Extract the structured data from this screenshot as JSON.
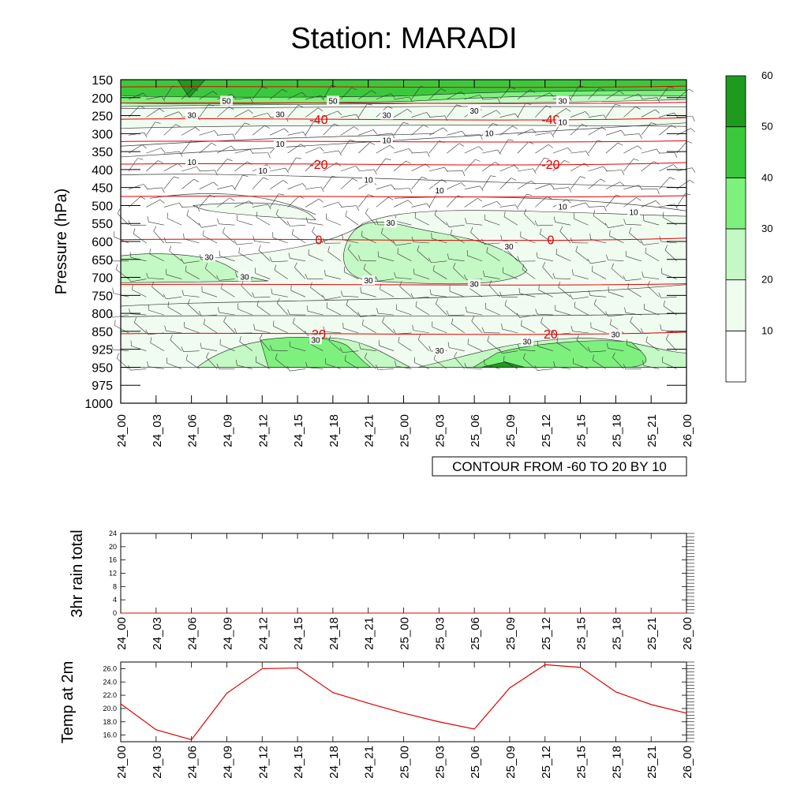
{
  "title": "Station: MARADI",
  "chart_data": [
    {
      "type": "heatmap",
      "name": "time-pressure cross section",
      "ylabel": "Pressure (hPa)",
      "y_reversed": true,
      "y_ticks": [
        "150",
        "200",
        "250",
        "300",
        "350",
        "400",
        "450",
        "500",
        "550",
        "600",
        "650",
        "700",
        "750",
        "800",
        "850",
        "925",
        "950",
        "975",
        "1000"
      ],
      "x_ticks": [
        "24_00",
        "24_03",
        "24_06",
        "24_09",
        "24_12",
        "24_15",
        "24_18",
        "24_21",
        "25_00",
        "25_03",
        "25_06",
        "25_09",
        "25_12",
        "25_15",
        "25_18",
        "25_21",
        "26_00"
      ],
      "info_label": "CONTOUR FROM -60 TO 20 BY 10",
      "colorbar": {
        "levels": [
          "10",
          "20",
          "30",
          "40",
          "50",
          "60"
        ],
        "colors": [
          "#ffffff",
          "#f0fcf0",
          "#c4f8c4",
          "#7ef07e",
          "#3cc83c",
          "#1e9a1e"
        ]
      },
      "fill_contour_labels": [
        "50",
        "50",
        "30",
        "30",
        "30",
        "30",
        "30",
        "10",
        "10",
        "10",
        "10",
        "10",
        "10",
        "10",
        "10",
        "10",
        "10",
        "30",
        "30",
        "30",
        "30",
        "30",
        "30",
        "30",
        "30",
        "30",
        "30",
        "30",
        "30"
      ],
      "temperature_contours": [
        {
          "value": "-40",
          "pressure": 260
        },
        {
          "value": "-20",
          "pressure": 385
        },
        {
          "value": "0",
          "pressure": 595
        },
        {
          "value": "20",
          "pressure": 860
        }
      ],
      "temperature_contour_color": "#e00000"
    },
    {
      "type": "line",
      "name": "3hr rain total",
      "ylabel": "3hr rain total",
      "ylim": [
        0,
        24
      ],
      "y_ticks": [
        "0",
        "4",
        "8",
        "12",
        "16",
        "20",
        "24"
      ],
      "x_ticks": [
        "24_00",
        "24_03",
        "24_06",
        "24_09",
        "24_12",
        "24_15",
        "24_18",
        "24_21",
        "25_00",
        "25_03",
        "25_06",
        "25_09",
        "25_12",
        "25_15",
        "25_18",
        "25_21",
        "26_00"
      ],
      "values": [
        0,
        0,
        0,
        0,
        0,
        0,
        0,
        0,
        0,
        0,
        0,
        0,
        0,
        0,
        0,
        0,
        0
      ]
    },
    {
      "type": "line",
      "name": "Temp at 2m",
      "ylabel": "Temp at 2m",
      "ylim": [
        15.0,
        27.0
      ],
      "y_ticks": [
        "16.0",
        "18.0",
        "20.0",
        "22.0",
        "24.0",
        "26.0"
      ],
      "x_ticks": [
        "24_00",
        "24_03",
        "24_06",
        "24_09",
        "24_12",
        "24_15",
        "24_18",
        "24_21",
        "25_00",
        "25_03",
        "25_06",
        "25_09",
        "25_12",
        "25_15",
        "25_18",
        "25_21",
        "26_00"
      ],
      "values": [
        20.7,
        16.8,
        15.3,
        22.3,
        26.0,
        26.1,
        22.4,
        20.8,
        19.3,
        18.0,
        16.9,
        23.1,
        26.6,
        26.2,
        22.5,
        20.6,
        19.3
      ],
      "line_color": "#e00000"
    }
  ]
}
